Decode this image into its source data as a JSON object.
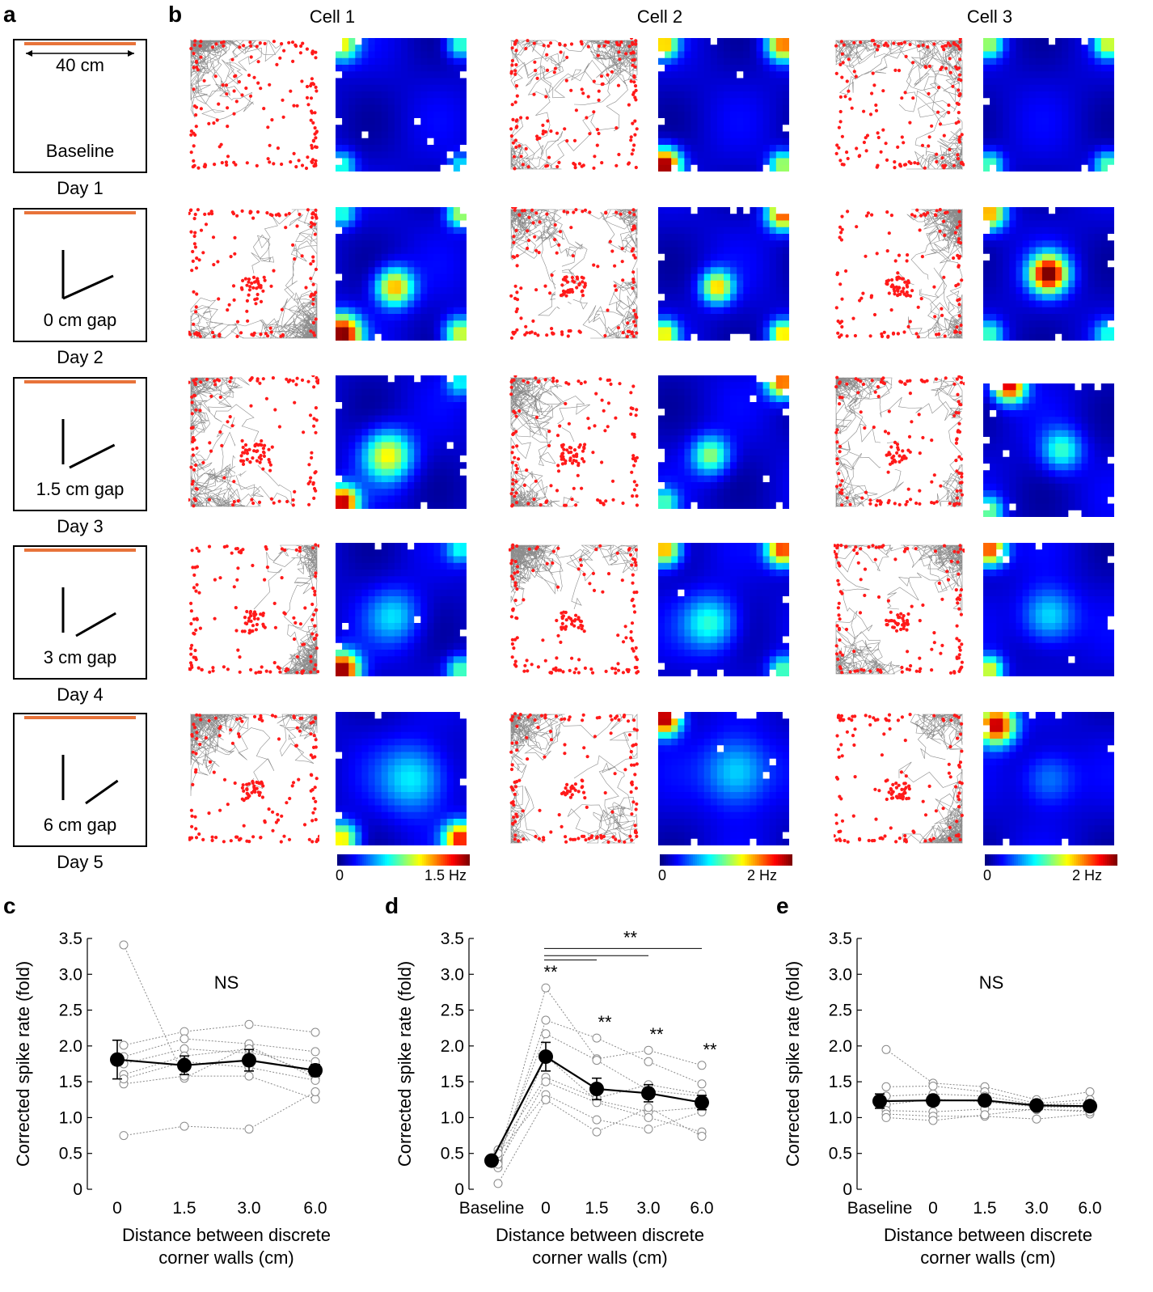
{
  "panels": {
    "a": "a",
    "b": "b",
    "c": "c",
    "d": "d",
    "e": "e"
  },
  "panel_a": {
    "scale_label": "40 cm",
    "box_labels": [
      "Baseline",
      "0 cm gap",
      "1.5 cm gap",
      "3 cm gap",
      "6 cm gap"
    ],
    "day_labels": [
      "Day 1",
      "Day 2",
      "Day 3",
      "Day 4",
      "Day 5"
    ],
    "cue_color": "#E8733A"
  },
  "panel_b": {
    "cell_titles": [
      "Cell 1",
      "Cell 2",
      "Cell 3"
    ],
    "colorbars": [
      {
        "min_label": "0",
        "max_label": "1.5 Hz"
      },
      {
        "min_label": "0",
        "max_label": "2 Hz"
      },
      {
        "min_label": "0",
        "max_label": "2 Hz"
      }
    ],
    "trajectory_color": "#808080",
    "spike_color": "#FF1A1A"
  },
  "chart_data": [
    {
      "panel": "c",
      "type": "line",
      "ylabel": "Corrected spike rate (fold)",
      "xlabel_line1": "Distance between discrete",
      "xlabel_line2": "corner walls (cm)",
      "categories": [
        "0",
        "1.5",
        "3.0",
        "6.0"
      ],
      "yticks": [
        "0",
        "0.5",
        "1.0",
        "1.5",
        "2.0",
        "2.5",
        "3.0",
        "3.5"
      ],
      "ylim": [
        0,
        3.5
      ],
      "annotation": "NS",
      "mean": [
        1.81,
        1.73,
        1.8,
        1.66
      ],
      "sem": [
        0.27,
        0.13,
        0.15,
        0.08
      ],
      "individual": [
        [
          3.41,
          1.55,
          2.0,
          1.55
        ],
        [
          2.01,
          2.2,
          2.3,
          2.19
        ],
        [
          1.85,
          2.1,
          2.03,
          1.92
        ],
        [
          1.75,
          1.96,
          1.9,
          1.78
        ],
        [
          1.6,
          1.86,
          1.96,
          1.6
        ],
        [
          1.47,
          1.58,
          1.58,
          1.26
        ],
        [
          1.54,
          1.78,
          1.7,
          1.52
        ],
        [
          0.75,
          0.88,
          0.84,
          1.36
        ]
      ]
    },
    {
      "panel": "d",
      "type": "line",
      "ylabel": "Corrected spike rate (fold)",
      "xlabel_line1": "Distance between discrete",
      "xlabel_line2": "corner walls (cm)",
      "categories": [
        "Baseline",
        "0",
        "1.5",
        "3.0",
        "6.0"
      ],
      "yticks": [
        "0",
        "0.5",
        "1.0",
        "1.5",
        "2.0",
        "2.5",
        "3.0",
        "3.5"
      ],
      "ylim": [
        0,
        3.5
      ],
      "significance_bar_label": "**",
      "point_stars": [
        "",
        "**",
        "**",
        "**",
        "**"
      ],
      "mean": [
        0.4,
        1.85,
        1.4,
        1.34,
        1.21
      ],
      "sem": [
        0.03,
        0.2,
        0.15,
        0.12,
        0.1
      ],
      "individual": [
        [
          0.42,
          2.81,
          1.82,
          1.94,
          1.73
        ],
        [
          0.38,
          2.36,
          2.11,
          1.78,
          1.47
        ],
        [
          0.45,
          2.17,
          1.8,
          1.38,
          1.3
        ],
        [
          0.3,
          1.86,
          1.24,
          1.08,
          1.14
        ],
        [
          0.55,
          1.56,
          1.27,
          1.46,
          1.33
        ],
        [
          0.35,
          1.5,
          1.21,
          1.0,
          0.8
        ],
        [
          0.5,
          1.32,
          0.97,
          0.84,
          1.08
        ],
        [
          0.08,
          1.25,
          0.8,
          1.14,
          0.74
        ]
      ]
    },
    {
      "panel": "e",
      "type": "line",
      "ylabel": "Corrected spike rate (fold)",
      "xlabel_line1": "Distance between discrete",
      "xlabel_line2": "corner walls (cm)",
      "categories": [
        "Baseline",
        "0",
        "1.5",
        "3.0",
        "6.0"
      ],
      "yticks": [
        "0",
        "0.5",
        "1.0",
        "1.5",
        "2.0",
        "2.5",
        "3.0",
        "3.5"
      ],
      "ylim": [
        0,
        3.5
      ],
      "annotation": "NS",
      "mean": [
        1.23,
        1.24,
        1.24,
        1.17,
        1.16
      ],
      "sem": [
        0.1,
        0.05,
        0.05,
        0.04,
        0.03
      ],
      "individual": [
        [
          1.95,
          1.48,
          1.43,
          1.25,
          1.36
        ],
        [
          1.43,
          1.44,
          1.36,
          1.2,
          1.25
        ],
        [
          1.3,
          1.33,
          1.3,
          1.18,
          1.2
        ],
        [
          1.18,
          1.26,
          1.22,
          1.15,
          1.14
        ],
        [
          1.1,
          1.08,
          1.12,
          1.11,
          1.1
        ],
        [
          1.05,
          1.02,
          1.02,
          0.98,
          1.05
        ],
        [
          1.0,
          0.96,
          1.04,
          1.12,
          1.08
        ]
      ]
    }
  ]
}
